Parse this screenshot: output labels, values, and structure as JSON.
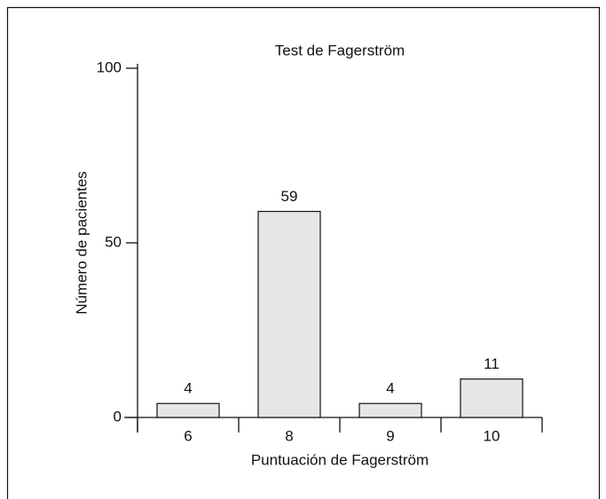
{
  "chart_data": {
    "type": "bar",
    "title": "Test de Fagerström",
    "x_label": "Puntuación de Fagerström",
    "y_label": "Número de pacientes",
    "categories": [
      "6",
      "8",
      "9",
      "10"
    ],
    "values": [
      4,
      59,
      4,
      11
    ],
    "color": "#e6e6e6",
    "ylim": [
      0,
      100
    ],
    "yticks": [
      0,
      50,
      100
    ]
  }
}
